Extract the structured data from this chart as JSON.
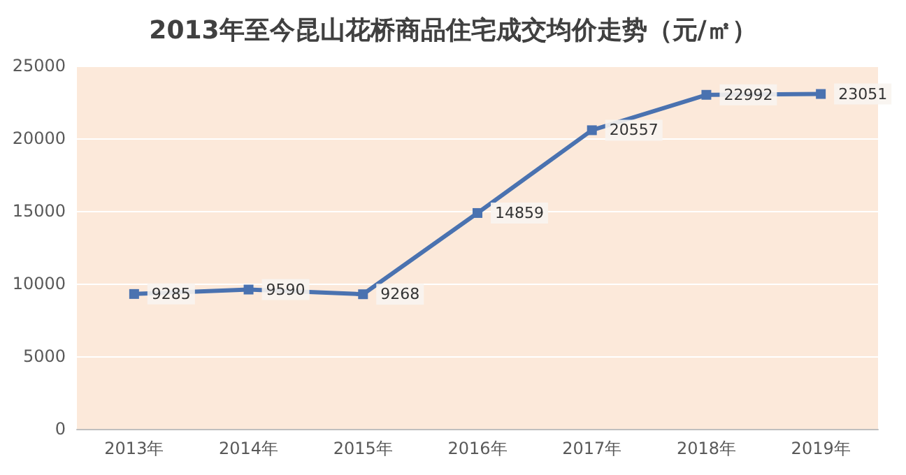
{
  "chart_data": {
    "type": "line",
    "title": "2013年至今昆山花桥商品住宅成交均价走势（元/㎡）",
    "categories": [
      "2013年",
      "2014年",
      "2015年",
      "2016年",
      "2017年",
      "2018年",
      "2019年"
    ],
    "values": [
      9285,
      9590,
      9268,
      14859,
      20557,
      22992,
      23051
    ],
    "color": "#4a72b0",
    "ylim": [
      0,
      25000
    ],
    "yticks": [
      0,
      5000,
      10000,
      15000,
      20000,
      25000
    ],
    "grid": "y",
    "marker": "square",
    "line_style": "solid",
    "data_labels": true
  }
}
